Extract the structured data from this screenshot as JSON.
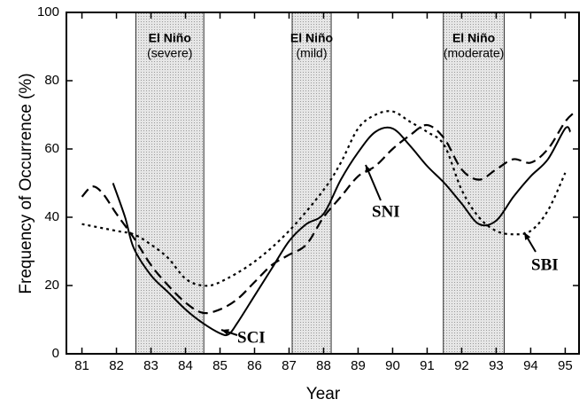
{
  "chart_data": {
    "type": "line",
    "xlabel": "Year",
    "ylabel": "Frequency of Occurrence (%)",
    "xlim": [
      80.55,
      95.4
    ],
    "ylim": [
      0,
      100
    ],
    "xticks": [
      81,
      82,
      83,
      84,
      85,
      86,
      87,
      88,
      89,
      90,
      91,
      92,
      93,
      94,
      95
    ],
    "yticks": [
      0,
      20,
      40,
      60,
      80,
      100
    ],
    "shaded_regions": [
      {
        "start": 82.56,
        "end": 84.53,
        "label": [
          "El Niño",
          "(severe)"
        ]
      },
      {
        "start": 87.09,
        "end": 88.22,
        "label": [
          "El Niño",
          "(mild)"
        ]
      },
      {
        "start": 91.47,
        "end": 93.23,
        "label": [
          "El Niño",
          "(moderate)"
        ]
      }
    ],
    "series": [
      {
        "name": "SCI",
        "color": "#000000",
        "style": "solid",
        "x": [
          81.9,
          82.25,
          82.5,
          83,
          83.5,
          84,
          84.5,
          85,
          85.25,
          85.5,
          86,
          86.5,
          87,
          87.5,
          88,
          88.5,
          89,
          89.5,
          90,
          90.5,
          91,
          91.5,
          92,
          92.5,
          93,
          93.5,
          94,
          94.5,
          95,
          95.15
        ],
        "values": [
          50,
          40,
          31,
          23,
          18,
          13,
          9,
          6,
          5.7,
          9,
          17,
          25,
          33,
          38,
          41,
          51,
          59,
          65,
          66,
          61,
          55,
          50,
          44,
          38,
          39,
          46,
          52,
          57,
          66,
          65
        ]
      },
      {
        "name": "SNI",
        "color": "#000000",
        "style": "dashed",
        "x": [
          81,
          81.3,
          81.6,
          82,
          82.5,
          83,
          83.5,
          84,
          84.5,
          85,
          85.5,
          86,
          86.5,
          87,
          87.5,
          88,
          88.5,
          89,
          89.5,
          90,
          90.5,
          91,
          91.5,
          92,
          92.5,
          93,
          93.5,
          94,
          94.5,
          95,
          95.3
        ],
        "values": [
          46,
          49,
          47,
          41,
          34,
          26,
          20,
          15,
          12,
          13,
          16,
          21,
          26,
          29,
          32,
          40,
          46,
          52,
          55,
          60,
          64,
          67,
          63,
          54,
          51,
          54,
          57,
          56,
          60,
          68,
          71
        ]
      },
      {
        "name": "SBI",
        "color": "#000000",
        "style": "dotted",
        "x": [
          81,
          82,
          82.5,
          83,
          83.5,
          84,
          84.5,
          85,
          86,
          87,
          88,
          88.5,
          89,
          89.5,
          90,
          90.5,
          91,
          91.5,
          92,
          92.5,
          93,
          93.5,
          94,
          94.5,
          95
        ],
        "values": [
          38,
          36,
          35,
          32,
          28,
          22,
          20,
          21,
          27,
          36,
          48,
          56,
          66,
          70,
          71,
          68,
          65,
          61,
          48,
          40,
          36,
          35,
          36,
          42,
          53
        ]
      }
    ]
  }
}
